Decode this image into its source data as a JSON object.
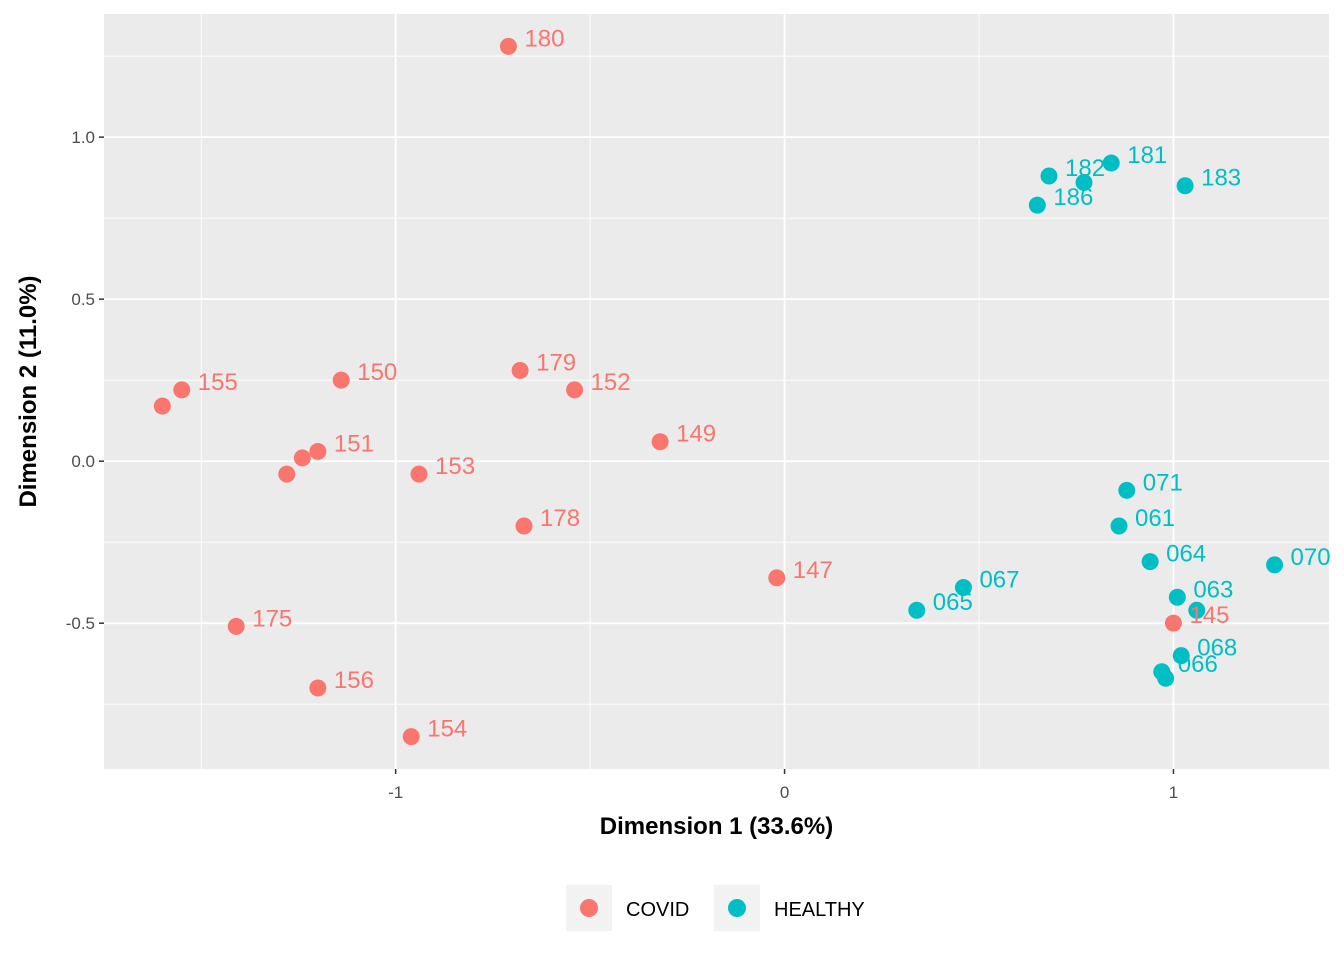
{
  "chart_data": {
    "type": "scatter",
    "title": "",
    "xlabel": "Dimension 1 (33.6%)",
    "ylabel": "Dimension 2 (11.0%)",
    "xlim": [
      -1.75,
      1.4
    ],
    "ylim": [
      -0.95,
      1.38
    ],
    "x_ticks": [
      -1,
      0,
      1
    ],
    "x_tick_labels": [
      "-1",
      "0",
      "1"
    ],
    "y_ticks": [
      -0.5,
      0.0,
      0.5,
      1.0
    ],
    "y_tick_labels": [
      "-0.5",
      "0.0",
      "0.5",
      "1.0"
    ],
    "grid": true,
    "legend_position": "bottom",
    "series": [
      {
        "name": "COVID",
        "color": "#F8766D",
        "points": [
          {
            "label": "180",
            "x": -0.71,
            "y": 1.28
          },
          {
            "label": "155",
            "x": -1.55,
            "y": 0.22
          },
          {
            "label": "",
            "x": -1.6,
            "y": 0.17
          },
          {
            "label": "150",
            "x": -1.14,
            "y": 0.25
          },
          {
            "label": "179",
            "x": -0.68,
            "y": 0.28
          },
          {
            "label": "152",
            "x": -0.54,
            "y": 0.22
          },
          {
            "label": "151",
            "x": -1.2,
            "y": 0.03
          },
          {
            "label": "",
            "x": -1.24,
            "y": 0.01
          },
          {
            "label": "",
            "x": -1.28,
            "y": -0.04
          },
          {
            "label": "153",
            "x": -0.94,
            "y": -0.04
          },
          {
            "label": "149",
            "x": -0.32,
            "y": 0.06
          },
          {
            "label": "178",
            "x": -0.67,
            "y": -0.2
          },
          {
            "label": "147",
            "x": -0.02,
            "y": -0.36
          },
          {
            "label": "175",
            "x": -1.41,
            "y": -0.51
          },
          {
            "label": "156",
            "x": -1.2,
            "y": -0.7
          },
          {
            "label": "154",
            "x": -0.96,
            "y": -0.85
          },
          {
            "label": "145",
            "x": 1.0,
            "y": -0.5
          }
        ]
      },
      {
        "name": "HEALTHY",
        "color": "#00BFC4",
        "points": [
          {
            "label": "182",
            "x": 0.68,
            "y": 0.88
          },
          {
            "label": "181",
            "x": 0.84,
            "y": 0.92
          },
          {
            "label": "",
            "x": 0.77,
            "y": 0.86
          },
          {
            "label": "183",
            "x": 1.03,
            "y": 0.85
          },
          {
            "label": "186",
            "x": 0.65,
            "y": 0.79
          },
          {
            "label": "071",
            "x": 0.88,
            "y": -0.09
          },
          {
            "label": "061",
            "x": 0.86,
            "y": -0.2
          },
          {
            "label": "064",
            "x": 0.94,
            "y": -0.31
          },
          {
            "label": "070",
            "x": 1.26,
            "y": -0.32
          },
          {
            "label": "067",
            "x": 0.46,
            "y": -0.39
          },
          {
            "label": "065",
            "x": 0.34,
            "y": -0.46
          },
          {
            "label": "063",
            "x": 1.01,
            "y": -0.42
          },
          {
            "label": "",
            "x": 1.06,
            "y": -0.46
          },
          {
            "label": "068",
            "x": 1.02,
            "y": -0.6
          },
          {
            "label": "066",
            "x": 0.97,
            "y": -0.65
          },
          {
            "label": "",
            "x": 0.98,
            "y": -0.67
          }
        ]
      }
    ]
  }
}
